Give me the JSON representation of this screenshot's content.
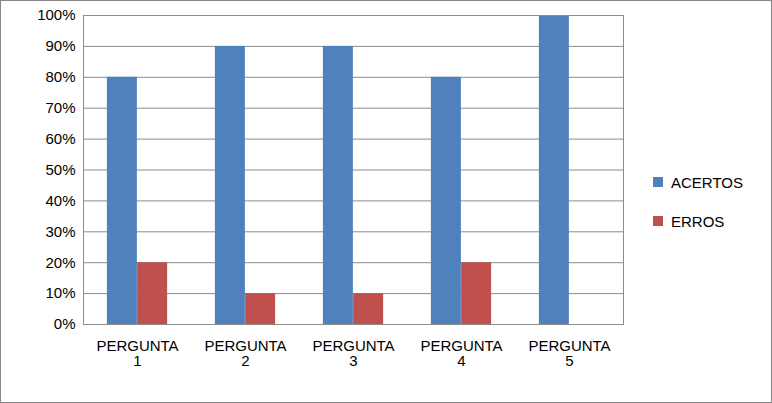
{
  "chart_data": {
    "type": "bar",
    "categories": [
      "PERGUNTA 1",
      "PERGUNTA 2",
      "PERGUNTA 3",
      "PERGUNTA 4",
      "PERGUNTA 5"
    ],
    "series": [
      {
        "name": "ACERTOS",
        "color": "#4F81BD",
        "values": [
          80,
          90,
          90,
          80,
          100
        ]
      },
      {
        "name": "ERROS",
        "color": "#C0504D",
        "values": [
          20,
          10,
          10,
          20,
          0
        ]
      }
    ],
    "ylim": [
      0,
      100
    ],
    "yticks": [
      {
        "value": 0,
        "label": "0%"
      },
      {
        "value": 10,
        "label": "10%"
      },
      {
        "value": 20,
        "label": "20%"
      },
      {
        "value": 30,
        "label": "30%"
      },
      {
        "value": 40,
        "label": "40%"
      },
      {
        "value": 50,
        "label": "50%"
      },
      {
        "value": 60,
        "label": "60%"
      },
      {
        "value": 70,
        "label": "70%"
      },
      {
        "value": 80,
        "label": "80%"
      },
      {
        "value": 90,
        "label": "90%"
      },
      {
        "value": 100,
        "label": "100%"
      }
    ],
    "grid": true,
    "legend": "right"
  }
}
